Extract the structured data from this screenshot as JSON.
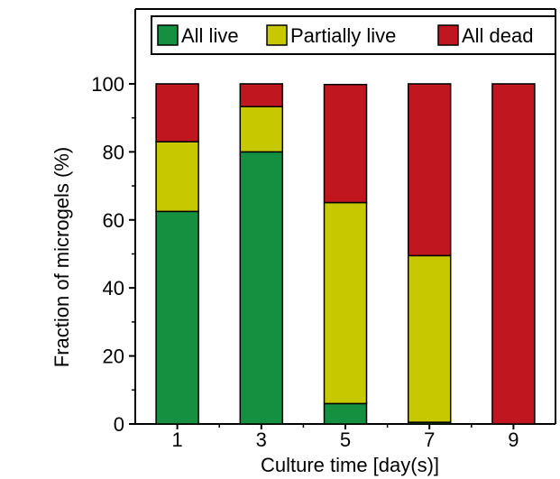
{
  "chart_data": {
    "type": "bar",
    "stacked": true,
    "categories": [
      "1",
      "3",
      "5",
      "7",
      "9"
    ],
    "series": [
      {
        "name": "All live",
        "color": "#149040",
        "values": [
          62.5,
          80,
          6,
          0.5,
          0
        ]
      },
      {
        "name": "Partially live",
        "color": "#c8c800",
        "values": [
          20.5,
          13.3,
          59.1,
          49,
          0
        ]
      },
      {
        "name": "All dead",
        "color": "#c0161f",
        "values": [
          17,
          6.7,
          34.7,
          50.5,
          100
        ]
      }
    ],
    "xlabel": "Culture time [day(s)]",
    "ylabel": "Fraction of microgels (%)",
    "ylim": [
      0,
      122
    ],
    "yticks": [
      0,
      20,
      40,
      60,
      80,
      100
    ],
    "grid": false,
    "legend_position": "top"
  }
}
